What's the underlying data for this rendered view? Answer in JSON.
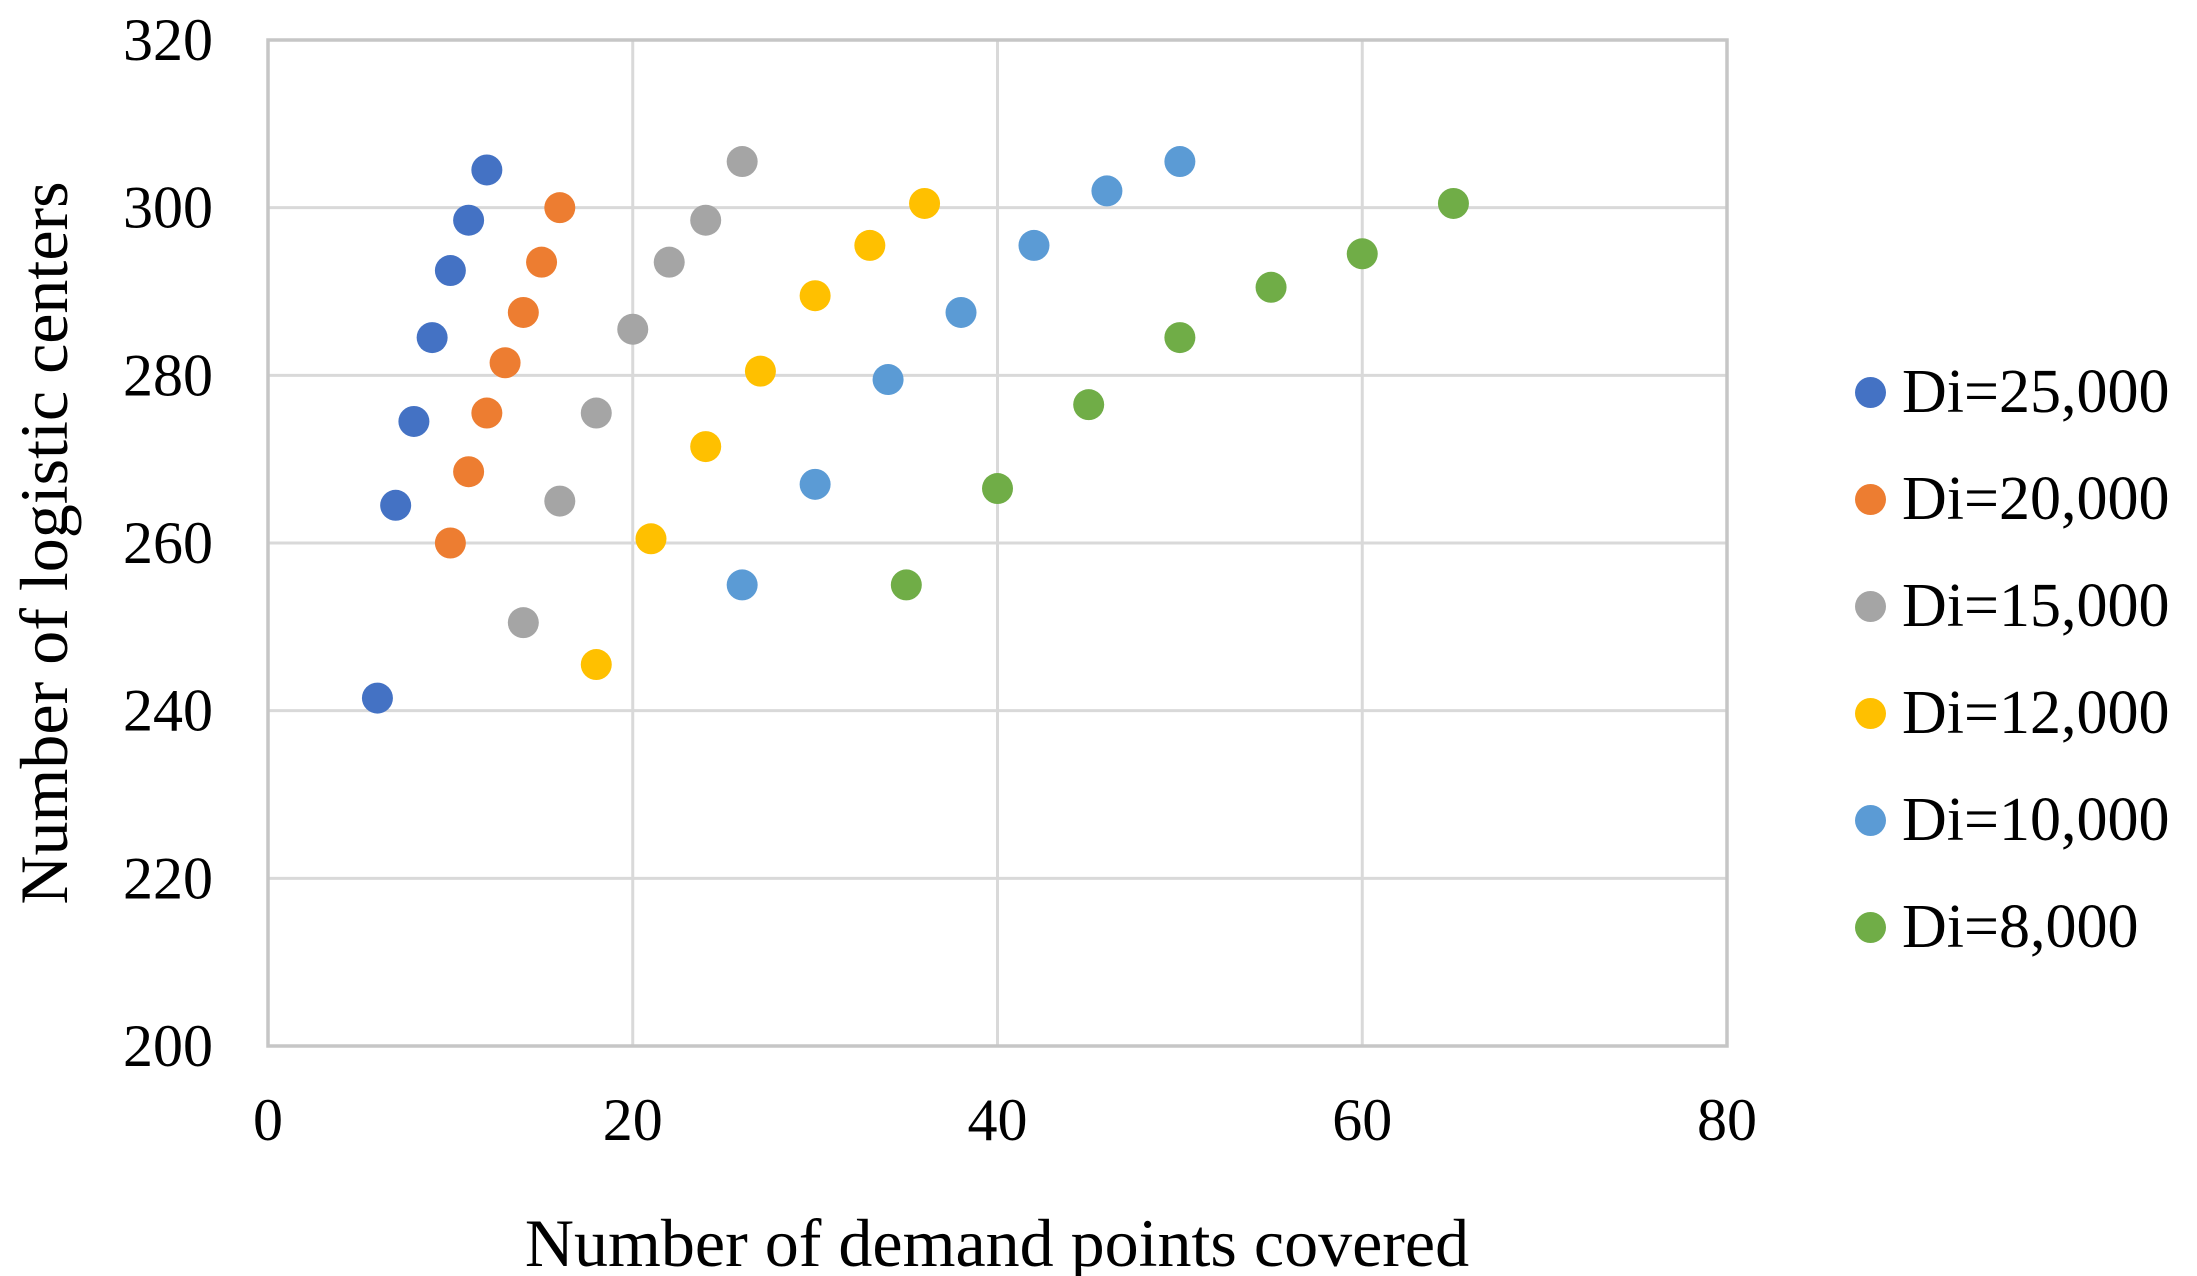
{
  "chart_data": {
    "type": "scatter",
    "xlabel": "Number of demand points covered",
    "ylabel": "Number of logistic centers",
    "xlim": [
      0,
      80
    ],
    "ylim": [
      200,
      320
    ],
    "xticks": [
      0,
      20,
      40,
      60,
      80
    ],
    "yticks": [
      200,
      220,
      240,
      260,
      280,
      300,
      320
    ],
    "grid": true,
    "legend_position": "right",
    "series": [
      {
        "name": "Di=25,000",
        "color": "#4472C4",
        "points": [
          [
            6,
            241.5
          ],
          [
            7,
            264.5
          ],
          [
            8,
            274.5
          ],
          [
            9,
            284.5
          ],
          [
            10,
            292.5
          ],
          [
            11,
            298.5
          ],
          [
            12,
            304.5
          ]
        ]
      },
      {
        "name": "Di=20,000",
        "color": "#ED7D31",
        "points": [
          [
            10,
            260
          ],
          [
            11,
            268.5
          ],
          [
            12,
            275.5
          ],
          [
            13,
            281.5
          ],
          [
            14,
            287.5
          ],
          [
            15,
            293.5
          ],
          [
            16,
            300
          ]
        ]
      },
      {
        "name": "Di=15,000",
        "color": "#A5A5A5",
        "points": [
          [
            14,
            250.5
          ],
          [
            16,
            265
          ],
          [
            18,
            275.5
          ],
          [
            20,
            285.5
          ],
          [
            22,
            293.5
          ],
          [
            24,
            298.5
          ],
          [
            26,
            305.5
          ]
        ]
      },
      {
        "name": "Di=12,000",
        "color": "#FFC000",
        "points": [
          [
            18,
            245.5
          ],
          [
            21,
            260.5
          ],
          [
            24,
            271.5
          ],
          [
            27,
            280.5
          ],
          [
            30,
            289.5
          ],
          [
            33,
            295.5
          ],
          [
            36,
            300.5
          ]
        ]
      },
      {
        "name": "Di=10,000",
        "color": "#5B9BD5",
        "points": [
          [
            26,
            255
          ],
          [
            30,
            267
          ],
          [
            34,
            279.5
          ],
          [
            38,
            287.5
          ],
          [
            42,
            295.5
          ],
          [
            46,
            302
          ],
          [
            50,
            305.5
          ]
        ]
      },
      {
        "name": "Di=8,000",
        "color": "#70AD47",
        "points": [
          [
            35,
            255
          ],
          [
            40,
            266.5
          ],
          [
            45,
            276.5
          ],
          [
            50,
            284.5
          ],
          [
            55,
            290.5
          ],
          [
            60,
            294.5
          ],
          [
            65,
            300.5
          ]
        ]
      }
    ]
  },
  "theme": {
    "background": "#FFFFFF",
    "gridline_color": "#D9D9D9",
    "frame_color": "#C6C6C6",
    "text_color": "#000000"
  }
}
